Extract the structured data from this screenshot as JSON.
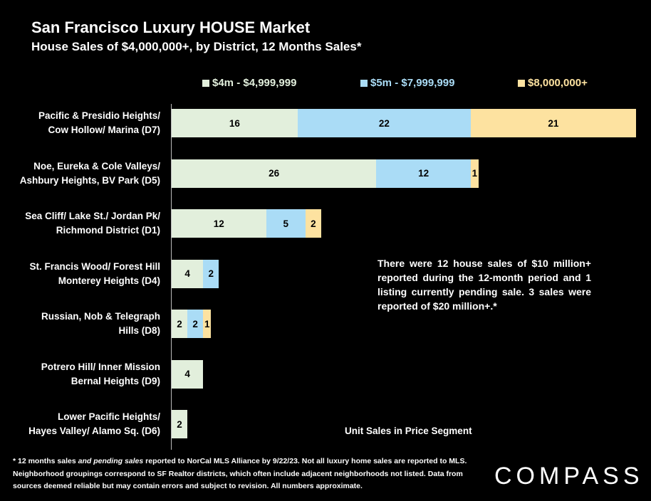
{
  "header": {
    "title": "San Francisco Luxury HOUSE Market",
    "subtitle": "House Sales of $4,000,000+, by District, 12 Months Sales*"
  },
  "note": "There were 12 house sales of $10 million+ reported during the 12-month period and 1 listing currently pending sale. 3 sales were reported of $20 million+.*",
  "footnote": {
    "prefix": "* 12 months sales ",
    "emphasis": "and pending sales",
    "suffix": " reported to NorCal MLS Alliance by 9/22/23. Not all luxury home sales are reported to MLS. Neighborhood groupings correspond to SF Realtor districts, which often include adjacent neighborhoods not listed. Data from sources deemed reliable but may contain errors and subject to revision. All numbers approximate."
  },
  "logo": "COMPASS",
  "colors": {
    "background": "#000000",
    "series": [
      "#e2efdc",
      "#aadcf6",
      "#fde2a0"
    ]
  },
  "chart_data": {
    "type": "bar",
    "orientation": "horizontal",
    "stacked": true,
    "title": "San Francisco Luxury HOUSE Market",
    "subtitle": "House Sales of $4,000,000+, by District, 12 Months Sales*",
    "xlabel": "Unit Sales in Price Segment",
    "ylabel": "",
    "xlim": [
      0,
      59
    ],
    "grid": false,
    "legend": "top",
    "categories": [
      [
        "Pacific & Presidio Heights/",
        "Cow Hollow/ Marina (D7)"
      ],
      [
        "Noe, Eureka & Cole Valleys/",
        "Ashbury Heights, BV Park (D5)"
      ],
      [
        "Sea Cliff/ Lake St./ Jordan Pk/",
        "Richmond District (D1)"
      ],
      [
        "St. Francis Wood/ Forest Hill",
        "Monterey Heights (D4)"
      ],
      [
        "Russian, Nob & Telegraph",
        "Hills (D8)"
      ],
      [
        "Potrero Hill/ Inner Mission",
        "Bernal Heights (D9)"
      ],
      [
        "Lower Pacific Heights/",
        "Hayes Valley/ Alamo Sq. (D6)"
      ]
    ],
    "series": [
      {
        "name": "$4m - $4,999,999",
        "values": [
          16,
          26,
          12,
          4,
          2,
          4,
          2
        ]
      },
      {
        "name": "$5m - $7,999,999",
        "values": [
          22,
          12,
          5,
          2,
          2,
          0,
          0
        ]
      },
      {
        "name": "$8,000,000+",
        "values": [
          21,
          1,
          2,
          0,
          1,
          0,
          0
        ]
      }
    ]
  }
}
